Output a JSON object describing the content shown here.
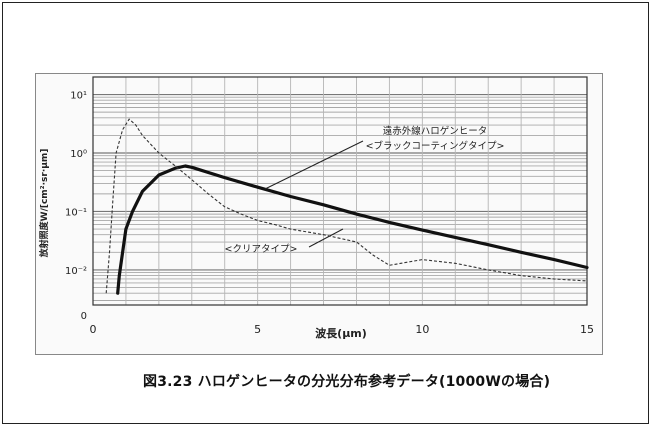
{
  "caption": "図3.23 ハロゲンヒータの分光分布参考データ(1000Wの場合)",
  "chart_data": {
    "type": "line",
    "xlabel": "波長(μm)",
    "ylabel": "放射照度W/[cm²·sr·μm]",
    "xlim": [
      0,
      15
    ],
    "ylim_log10": [
      -2.6,
      1.3
    ],
    "log_y": true,
    "grid": true,
    "x_ticks": [
      "0",
      "5",
      "10",
      "15"
    ],
    "y_ticks": [
      "10¹",
      "10⁰",
      "10⁻¹",
      "10⁻²",
      "0"
    ],
    "annotations": [
      {
        "text": "遠赤外線ハロゲンヒータ",
        "series": 0
      },
      {
        "text": "<ブラックコーティングタイプ>",
        "series": 0
      },
      {
        "text": "<クリアタイプ>",
        "series": 1
      }
    ],
    "series": [
      {
        "style": "solid-thick",
        "x": [
          0.75,
          0.8,
          0.9,
          1.0,
          1.2,
          1.5,
          2.0,
          2.5,
          2.8,
          3.0,
          4.0,
          5.0,
          6.0,
          7.0,
          8.0,
          9.0,
          10.0,
          11.0,
          12.0,
          13.0,
          14.0,
          15.0
        ],
        "y": [
          0.004,
          0.008,
          0.02,
          0.05,
          0.1,
          0.22,
          0.42,
          0.55,
          0.6,
          0.57,
          0.38,
          0.26,
          0.18,
          0.13,
          0.09,
          0.065,
          0.048,
          0.036,
          0.027,
          0.02,
          0.015,
          0.011
        ]
      },
      {
        "style": "dashed-thin",
        "x": [
          0.4,
          0.5,
          0.6,
          0.7,
          0.9,
          1.1,
          1.3,
          1.5,
          2.0,
          2.5,
          3.0,
          3.5,
          4.0,
          4.5,
          5.0,
          5.5,
          6.0,
          7.0,
          8.0,
          8.5,
          9.0,
          10.0,
          11.0,
          12.0,
          13.0,
          14.0,
          15.0
        ],
        "y": [
          0.004,
          0.02,
          0.15,
          1.0,
          2.5,
          3.8,
          3.0,
          2.0,
          1.0,
          0.6,
          0.35,
          0.2,
          0.12,
          0.09,
          0.07,
          0.06,
          0.05,
          0.04,
          0.03,
          0.018,
          0.012,
          0.015,
          0.013,
          0.01,
          0.008,
          0.007,
          0.0065
        ]
      }
    ]
  }
}
